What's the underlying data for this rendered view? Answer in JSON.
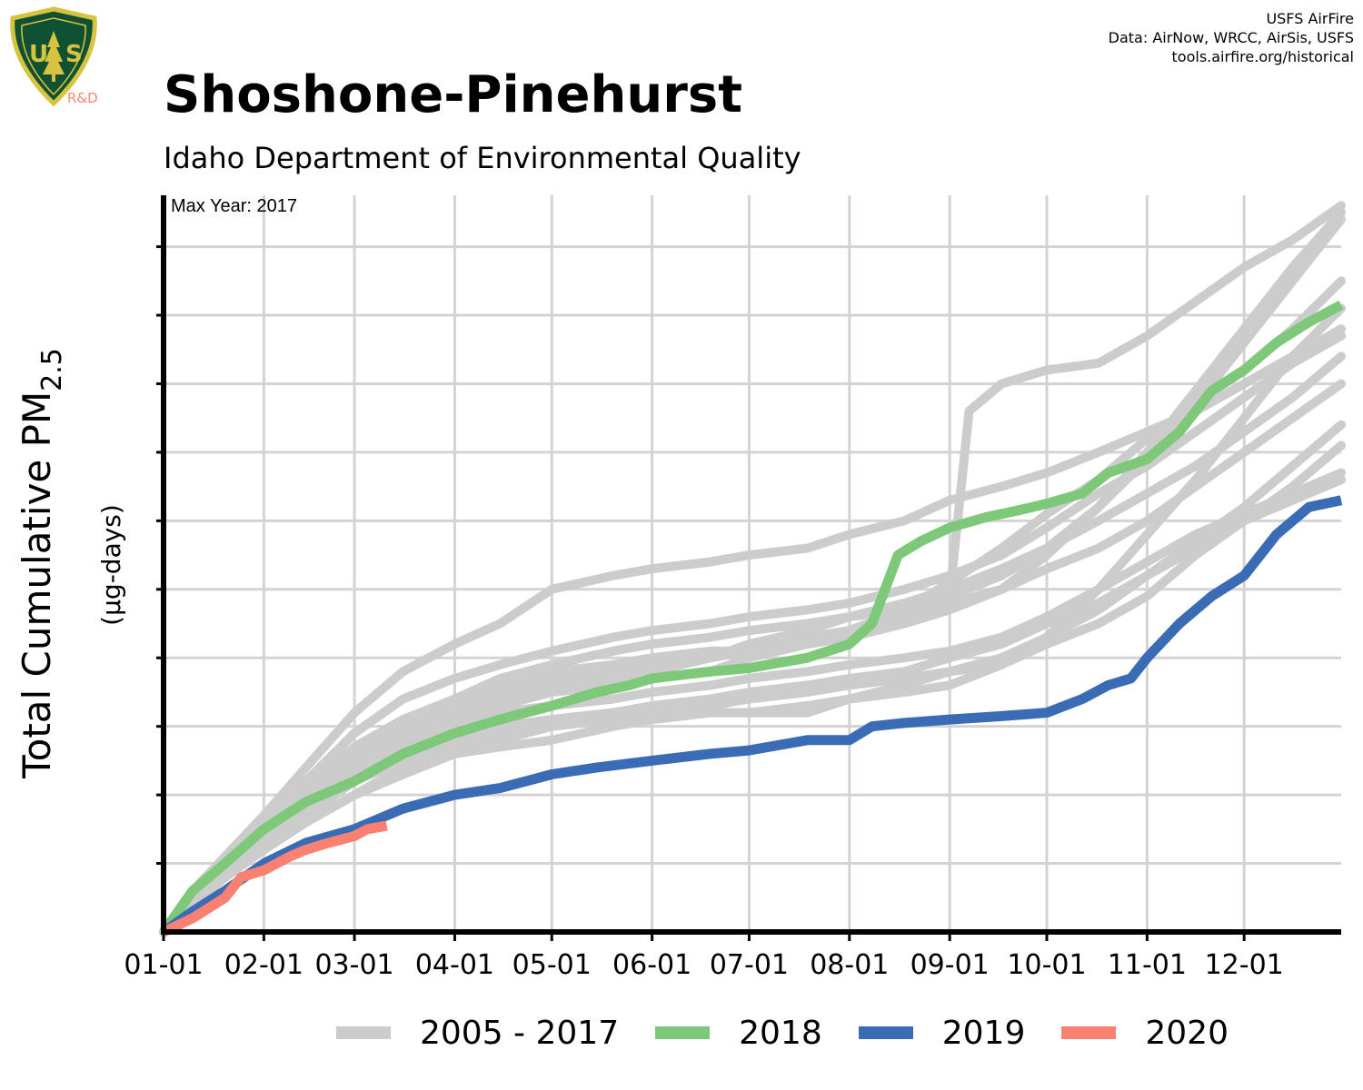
{
  "header": {
    "title": "Shoshone-Pinehurst",
    "subtitle": "Idaho Department of Environmental Quality",
    "logo_rd": "R&D",
    "credits": [
      "USFS AirFire",
      "Data: AirNow, WRCC, AirSis, USFS",
      "tools.airfire.org/historical"
    ]
  },
  "colors": {
    "history": "#cccccc",
    "y2018": "#7ec87a",
    "y2019": "#3a6bb5",
    "y2020": "#fa8072",
    "grid": "#d3d3d3",
    "axis": "#000000"
  },
  "chart_data": {
    "type": "line",
    "ylabel_main": "Total Cumulative PM",
    "ylabel_sub": "2.5",
    "ylabel_units": "(µg-days)",
    "annotation": "Max Year: 2017",
    "x_unit": "day of year",
    "xlim": [
      1,
      365
    ],
    "ylim": [
      0,
      107.5
    ],
    "x_ticks": [
      {
        "day": 1,
        "label": "01-01"
      },
      {
        "day": 32,
        "label": "02-01"
      },
      {
        "day": 60,
        "label": "03-01"
      },
      {
        "day": 91,
        "label": "04-01"
      },
      {
        "day": 121,
        "label": "05-01"
      },
      {
        "day": 152,
        "label": "06-01"
      },
      {
        "day": 182,
        "label": "07-01"
      },
      {
        "day": 213,
        "label": "08-01"
      },
      {
        "day": 244,
        "label": "09-01"
      },
      {
        "day": 274,
        "label": "10-01"
      },
      {
        "day": 305,
        "label": "11-01"
      },
      {
        "day": 335,
        "label": "12-01"
      }
    ],
    "y_ticks": [
      0,
      10,
      20,
      30,
      40,
      50,
      60,
      70,
      80,
      90,
      100
    ],
    "legend": [
      "2005 - 2017",
      "2018",
      "2019",
      "2020"
    ],
    "history_series": [
      {
        "x": [
          1,
          10,
          20,
          32,
          45,
          60,
          75,
          91,
          105,
          121,
          140,
          152,
          170,
          182,
          200,
          213,
          230,
          244,
          260,
          274,
          290,
          305,
          320,
          335,
          350,
          365
        ],
        "y": [
          0,
          6,
          11,
          17,
          24,
          32,
          38,
          42,
          45,
          50,
          52,
          53,
          54,
          55,
          56,
          58,
          60,
          63,
          65,
          67,
          70,
          73,
          76,
          80,
          84,
          88
        ]
      },
      {
        "x": [
          1,
          10,
          20,
          32,
          45,
          60,
          75,
          91,
          105,
          121,
          140,
          152,
          170,
          182,
          200,
          213,
          230,
          244,
          260,
          274,
          290,
          305,
          320,
          335,
          350,
          365
        ],
        "y": [
          0,
          5,
          10,
          15,
          20,
          25,
          29,
          32,
          34,
          36,
          37,
          38,
          40,
          42,
          44,
          46,
          48,
          50,
          53,
          56,
          60,
          64,
          68,
          73,
          78,
          84
        ]
      },
      {
        "x": [
          1,
          10,
          20,
          32,
          45,
          60,
          75,
          91,
          105,
          121,
          140,
          152,
          170,
          182,
          200,
          213,
          230,
          244,
          260,
          274,
          290,
          305,
          320,
          335,
          350,
          365
        ],
        "y": [
          0,
          4,
          8,
          13,
          18,
          24,
          28,
          31,
          33,
          35,
          36,
          37,
          38,
          40,
          42,
          44,
          47,
          51,
          56,
          61,
          66,
          72,
          77,
          82,
          88,
          95
        ]
      },
      {
        "x": [
          1,
          10,
          20,
          32,
          45,
          60,
          75,
          91,
          105,
          121,
          140,
          152,
          170,
          182,
          200,
          213,
          230,
          244,
          250,
          260,
          274,
          290,
          305,
          320,
          335,
          350,
          365
        ],
        "y": [
          0,
          5,
          10,
          15,
          21,
          27,
          31,
          34,
          36,
          38,
          39,
          40,
          41,
          41,
          42,
          43,
          46,
          49,
          76,
          80,
          82,
          83,
          87,
          92,
          97,
          101,
          106
        ]
      },
      {
        "x": [
          1,
          10,
          20,
          32,
          45,
          60,
          75,
          91,
          105,
          121,
          140,
          152,
          170,
          182,
          200,
          213,
          230,
          244,
          260,
          274,
          290,
          305,
          320,
          335,
          350,
          365
        ],
        "y": [
          0,
          4,
          8,
          12,
          16,
          20,
          23,
          26,
          27,
          28,
          30,
          31,
          32,
          32,
          33,
          34,
          35,
          36,
          39,
          43,
          50,
          58,
          66,
          75,
          84,
          91
        ]
      },
      {
        "x": [
          1,
          10,
          20,
          32,
          45,
          60,
          75,
          91,
          105,
          121,
          140,
          152,
          170,
          182,
          200,
          213,
          230,
          244,
          260,
          274,
          290,
          305,
          320,
          335,
          350,
          365
        ],
        "y": [
          0,
          4,
          8,
          13,
          17,
          22,
          25,
          28,
          30,
          31,
          32,
          32,
          32,
          32,
          32,
          34,
          36,
          38,
          39,
          42,
          45,
          49,
          55,
          60,
          65,
          71
        ]
      },
      {
        "x": [
          1,
          10,
          20,
          32,
          45,
          60,
          75,
          91,
          105,
          121,
          140,
          152,
          170,
          182,
          200,
          213,
          230,
          244,
          260,
          274,
          290,
          305,
          320,
          335,
          350,
          365
        ],
        "y": [
          0,
          5,
          9,
          14,
          19,
          24,
          28,
          31,
          34,
          36,
          38,
          39,
          40,
          41,
          43,
          44,
          46,
          48,
          50,
          53,
          56,
          60,
          65,
          70,
          75,
          80
        ]
      },
      {
        "x": [
          1,
          10,
          20,
          32,
          45,
          60,
          75,
          91,
          105,
          121,
          140,
          152,
          170,
          182,
          200,
          213,
          230,
          244,
          260,
          274,
          290,
          305,
          320,
          335,
          350,
          365
        ],
        "y": [
          0,
          5,
          10,
          15,
          21,
          26,
          30,
          33,
          35,
          37,
          38,
          39,
          40,
          41,
          42,
          43,
          45,
          47,
          50,
          55,
          62,
          70,
          79,
          88,
          97,
          105
        ]
      },
      {
        "x": [
          1,
          10,
          20,
          32,
          45,
          60,
          75,
          91,
          105,
          121,
          140,
          152,
          170,
          182,
          200,
          213,
          230,
          244,
          260,
          274,
          290,
          305,
          320,
          335,
          350,
          365
        ],
        "y": [
          0,
          5,
          10,
          16,
          22,
          29,
          34,
          37,
          39,
          41,
          43,
          44,
          45,
          46,
          47,
          48,
          50,
          52,
          55,
          59,
          64,
          68,
          73,
          78,
          83,
          87
        ]
      },
      {
        "x": [
          1,
          10,
          20,
          32,
          45,
          60,
          75,
          91,
          105,
          121,
          140,
          152,
          170,
          182,
          200,
          213,
          230,
          244,
          260,
          274,
          290,
          305,
          320,
          335,
          350,
          365
        ],
        "y": [
          0,
          4,
          9,
          13,
          18,
          23,
          27,
          30,
          32,
          33,
          34,
          35,
          36,
          37,
          38,
          39,
          40,
          41,
          43,
          46,
          50,
          54,
          58,
          61,
          64,
          67
        ]
      },
      {
        "x": [
          1,
          10,
          20,
          32,
          45,
          60,
          75,
          91,
          105,
          121,
          140,
          152,
          170,
          182,
          200,
          213,
          230,
          244,
          260,
          274,
          290,
          305,
          320,
          335,
          350,
          365
        ],
        "y": [
          0,
          4,
          8,
          12,
          16,
          20,
          23,
          26,
          28,
          30,
          31,
          32,
          33,
          34,
          35,
          36,
          37,
          38,
          40,
          43,
          47,
          52,
          57,
          62,
          68,
          74
        ]
      },
      {
        "x": [
          1,
          10,
          20,
          32,
          45,
          60,
          75,
          91,
          105,
          121,
          140,
          152,
          170,
          182,
          200,
          213,
          230,
          244,
          260,
          274,
          290,
          305,
          320,
          335,
          350,
          365
        ],
        "y": [
          0,
          5,
          10,
          15,
          20,
          25,
          30,
          34,
          37,
          39,
          41,
          42,
          43,
          44,
          45,
          46,
          47,
          49,
          52,
          56,
          62,
          69,
          77,
          86,
          95,
          104
        ]
      },
      {
        "x": [
          1,
          10,
          20,
          32,
          45,
          60,
          75,
          91,
          105,
          121,
          140,
          152,
          170,
          182,
          200,
          213,
          230,
          244,
          260,
          274,
          290,
          305,
          320,
          335,
          350,
          365
        ],
        "y": [
          0,
          4,
          8,
          12,
          16,
          20,
          24,
          27,
          29,
          31,
          32,
          33,
          34,
          35,
          36,
          37,
          38,
          40,
          42,
          45,
          48,
          52,
          56,
          60,
          63,
          66
        ]
      }
    ],
    "series": [
      {
        "name": "2018",
        "x": [
          1,
          10,
          20,
          32,
          45,
          60,
          75,
          91,
          105,
          121,
          135,
          145,
          152,
          170,
          182,
          200,
          213,
          220,
          228,
          235,
          244,
          255,
          265,
          274,
          285,
          293,
          305,
          315,
          325,
          335,
          345,
          355,
          365
        ],
        "y": [
          0,
          6,
          10,
          15,
          19,
          22,
          26,
          29,
          31,
          33,
          35,
          36,
          37,
          38,
          38.5,
          40,
          42,
          45,
          55,
          57,
          59,
          60.5,
          61.5,
          62.5,
          64,
          67,
          69,
          73,
          79,
          82,
          86,
          89,
          91.5
        ]
      },
      {
        "name": "2019",
        "x": [
          1,
          10,
          20,
          32,
          45,
          60,
          75,
          91,
          105,
          121,
          135,
          152,
          170,
          182,
          200,
          213,
          220,
          230,
          244,
          260,
          274,
          285,
          293,
          300,
          305,
          315,
          325,
          335,
          345,
          355,
          365
        ],
        "y": [
          0,
          3,
          6,
          10,
          13,
          15,
          18,
          20,
          21,
          23,
          24,
          25,
          26,
          26.5,
          28,
          28,
          30,
          30.5,
          31,
          31.5,
          32,
          34,
          36,
          37,
          40,
          45,
          49,
          52,
          58,
          62,
          63
        ]
      },
      {
        "name": "2020",
        "x": [
          1,
          10,
          20,
          25,
          32,
          40,
          45,
          52,
          60,
          64,
          70
        ],
        "y": [
          0,
          2,
          5,
          8,
          9,
          11,
          12,
          13,
          14,
          15,
          15.5
        ]
      }
    ]
  }
}
